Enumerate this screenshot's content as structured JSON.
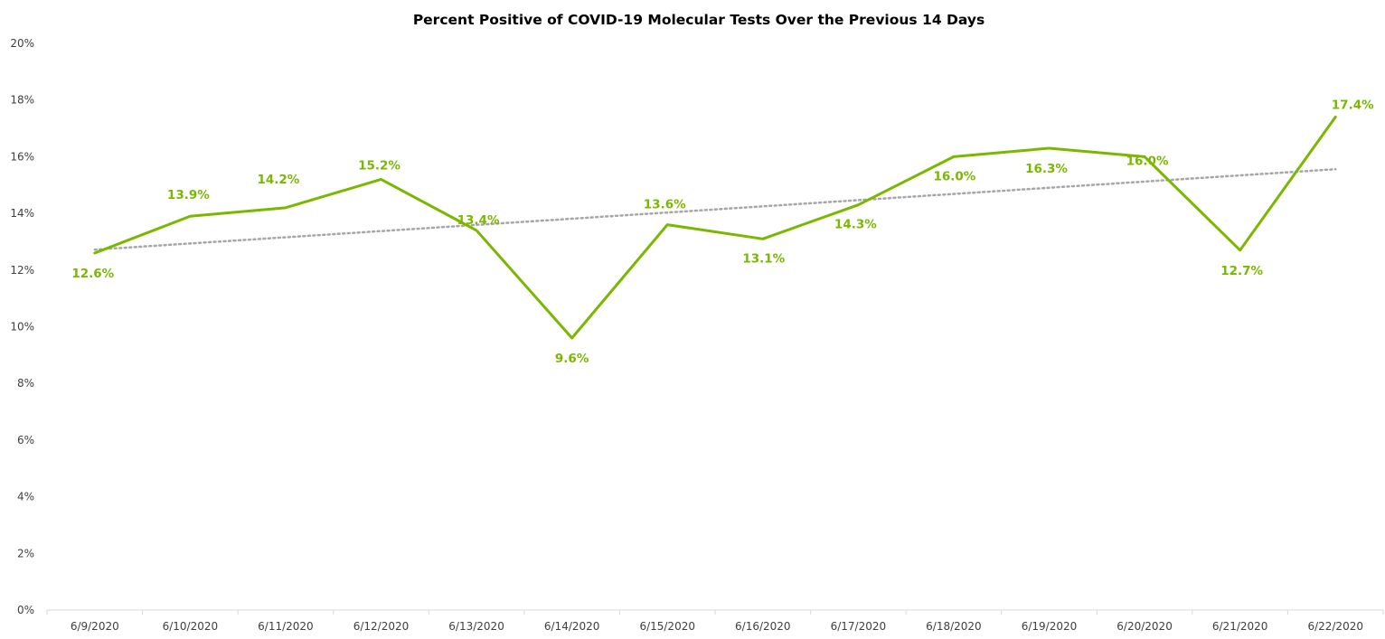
{
  "chart_data": {
    "type": "line",
    "title": "Percent Positive of COVID-19 Molecular Tests Over the Previous 14 Days",
    "xlabel": "",
    "ylabel": "",
    "categories": [
      "6/9/2020",
      "6/10/2020",
      "6/11/2020",
      "6/12/2020",
      "6/13/2020",
      "6/14/2020",
      "6/15/2020",
      "6/16/2020",
      "6/17/2020",
      "6/18/2020",
      "6/19/2020",
      "6/20/2020",
      "6/21/2020",
      "6/22/2020"
    ],
    "series": [
      {
        "color": "#7AB800",
        "values": [
          12.6,
          13.9,
          14.2,
          15.2,
          13.4,
          9.6,
          13.6,
          13.1,
          14.3,
          16.0,
          16.3,
          16.0,
          12.7,
          17.4
        ],
        "data_labels": [
          "12.6%",
          "13.9%",
          "14.2%",
          "15.2%",
          "13.4%",
          "9.6%",
          "13.6%",
          "13.1%",
          "14.3%",
          "16.0%",
          "16.3%",
          "16.0%",
          "12.7%",
          "17.4%"
        ]
      }
    ],
    "trendline": {
      "type": "linear",
      "style": "dotted",
      "color": "#A6A6A6",
      "start_value": 12.72,
      "end_value": 15.56
    },
    "y_ticks": [
      "0%",
      "2%",
      "4%",
      "6%",
      "8%",
      "10%",
      "12%",
      "14%",
      "16%",
      "18%",
      "20%"
    ],
    "ylim": [
      0,
      20
    ],
    "grid": false,
    "legend": "none"
  }
}
